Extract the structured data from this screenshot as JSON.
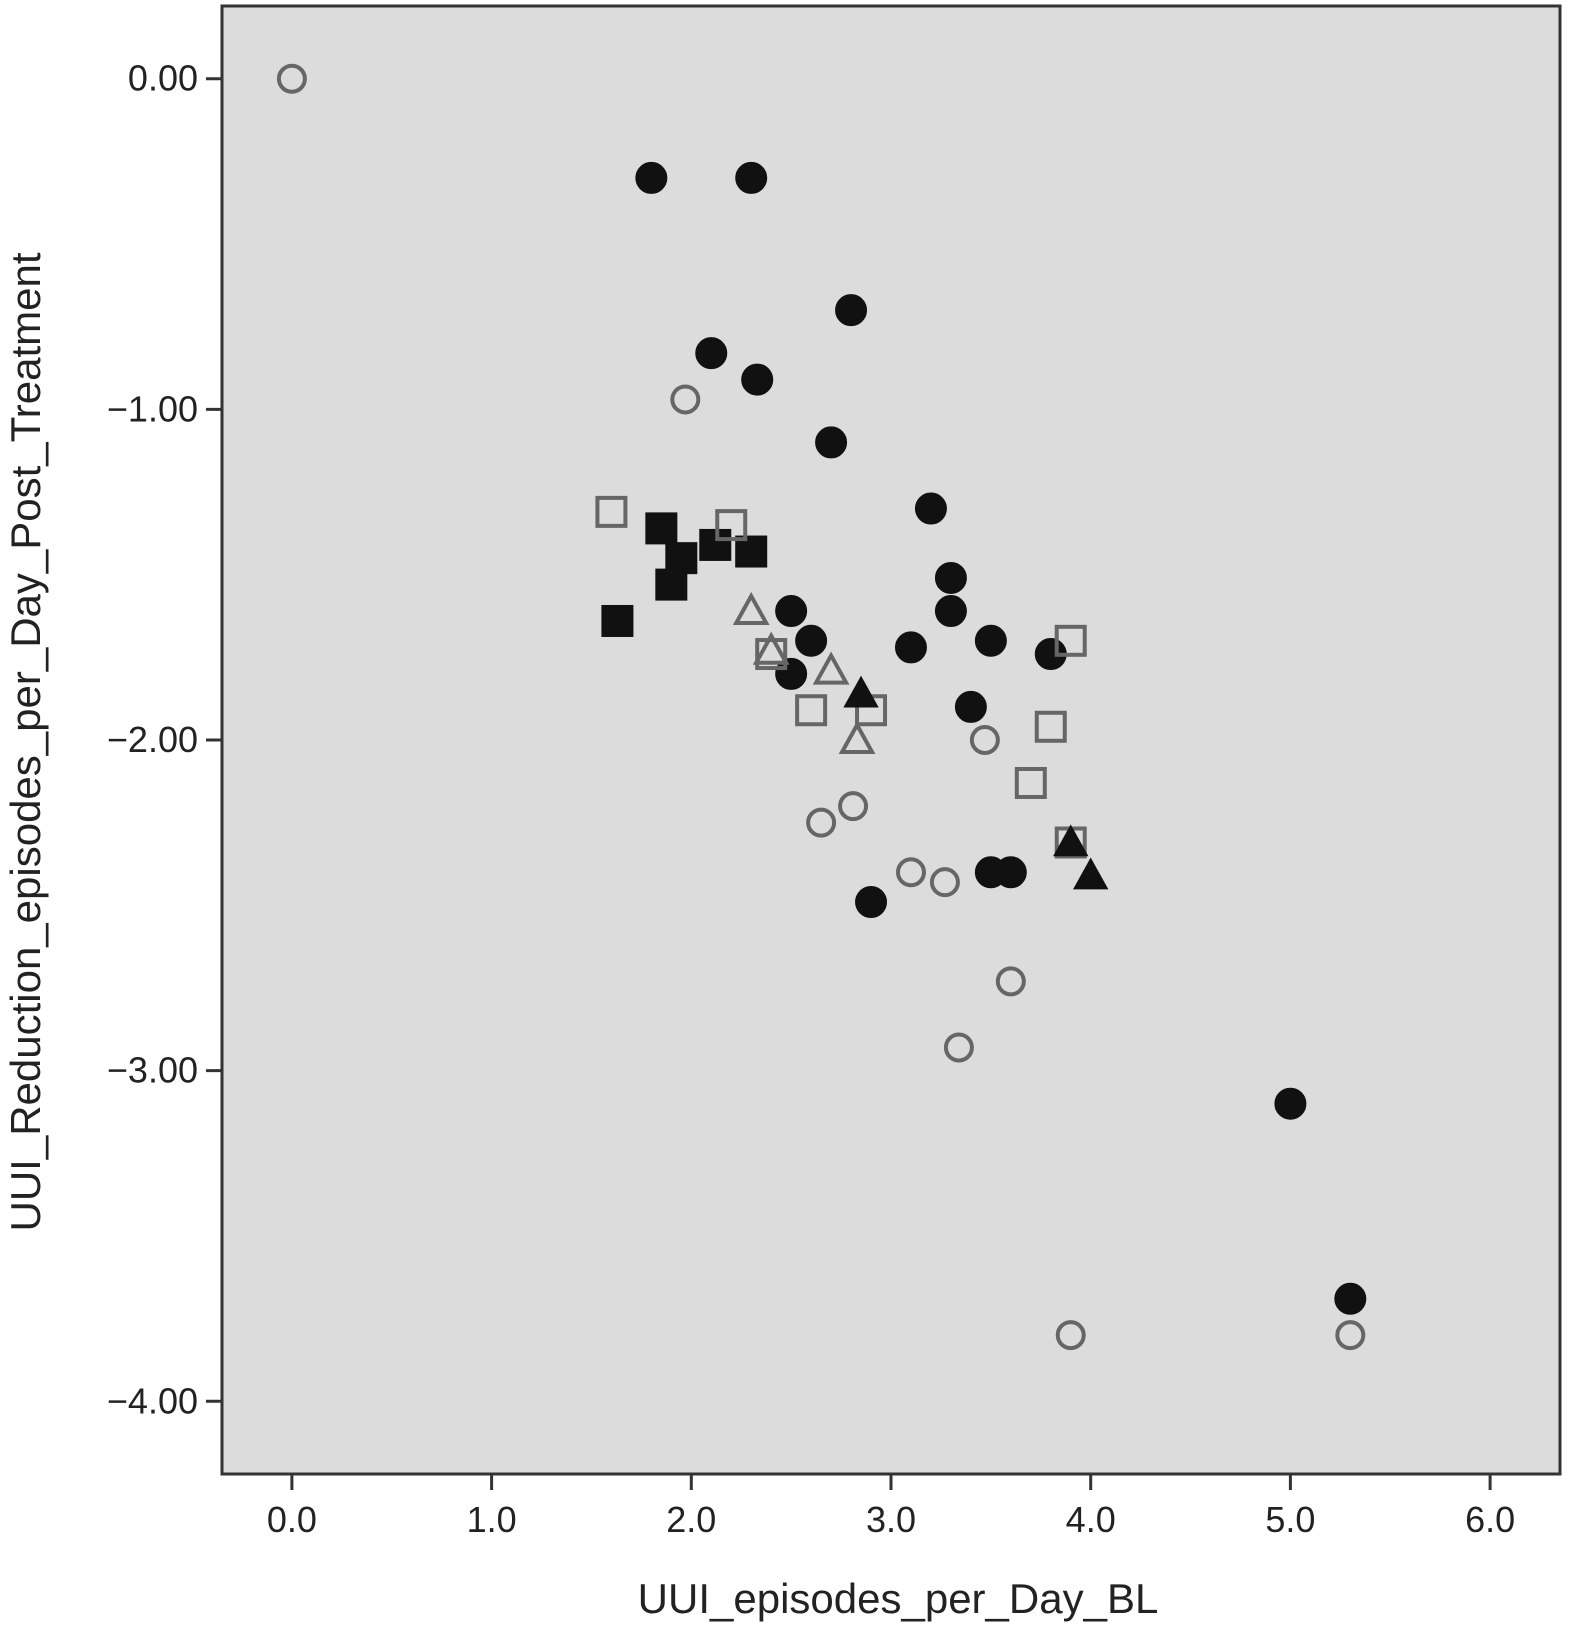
{
  "chart_data": {
    "type": "scatter",
    "xlabel": "UUI_episodes_per_Day_BL",
    "ylabel": "UUI_Reduction_episodes_per_Day_Post_Treatment",
    "xlim": [
      -0.35,
      6.35
    ],
    "ylim": [
      -4.22,
      0.22
    ],
    "x_ticks": [
      "0.0",
      "1.0",
      "2.0",
      "3.0",
      "4.0",
      "5.0",
      "6.0"
    ],
    "y_ticks": [
      "0.00",
      "−1.00",
      "−2.00",
      "−3.00",
      "−4.00"
    ],
    "grid": false,
    "plot_background": "#dcdcdc",
    "series": [
      {
        "marker": "circle-filled",
        "color": "#111111",
        "points": [
          [
            1.8,
            -0.3
          ],
          [
            2.3,
            -0.3
          ],
          [
            2.8,
            -0.7
          ],
          [
            2.1,
            -0.83
          ],
          [
            2.33,
            -0.91
          ],
          [
            2.7,
            -1.1
          ],
          [
            3.2,
            -1.3
          ],
          [
            3.3,
            -1.51
          ],
          [
            3.3,
            -1.61
          ],
          [
            2.5,
            -1.61
          ],
          [
            3.5,
            -1.7
          ],
          [
            3.1,
            -1.72
          ],
          [
            2.6,
            -1.7
          ],
          [
            3.8,
            -1.74
          ],
          [
            2.5,
            -1.8
          ],
          [
            3.4,
            -1.9
          ],
          [
            3.5,
            -2.4
          ],
          [
            3.6,
            -2.4
          ],
          [
            2.9,
            -2.49
          ],
          [
            5.0,
            -3.1
          ],
          [
            5.3,
            -3.69
          ]
        ]
      },
      {
        "marker": "circle-open",
        "color": "#666666",
        "points": [
          [
            0.0,
            0.0
          ],
          [
            1.97,
            -0.97
          ],
          [
            3.47,
            -2.0
          ],
          [
            2.81,
            -2.2
          ],
          [
            2.65,
            -2.25
          ],
          [
            3.1,
            -2.4
          ],
          [
            3.27,
            -2.43
          ],
          [
            3.6,
            -2.73
          ],
          [
            3.34,
            -2.93
          ],
          [
            3.9,
            -3.8
          ],
          [
            5.3,
            -3.8
          ]
        ]
      },
      {
        "marker": "square-filled",
        "color": "#111111",
        "points": [
          [
            1.63,
            -1.64
          ],
          [
            1.85,
            -1.36
          ],
          [
            1.95,
            -1.45
          ],
          [
            1.9,
            -1.53
          ],
          [
            2.12,
            -1.41
          ],
          [
            2.3,
            -1.43
          ]
        ]
      },
      {
        "marker": "square-open",
        "color": "#666666",
        "points": [
          [
            1.6,
            -1.31
          ],
          [
            2.2,
            -1.35
          ],
          [
            2.4,
            -1.74
          ],
          [
            2.6,
            -1.91
          ],
          [
            2.9,
            -1.91
          ],
          [
            3.8,
            -1.96
          ],
          [
            3.7,
            -2.13
          ],
          [
            3.9,
            -2.31
          ],
          [
            3.9,
            -1.7
          ]
        ]
      },
      {
        "marker": "triangle-filled",
        "color": "#111111",
        "points": [
          [
            2.85,
            -1.86
          ],
          [
            3.9,
            -2.31
          ],
          [
            4.0,
            -2.41
          ]
        ]
      },
      {
        "marker": "triangle-open",
        "color": "#666666",
        "points": [
          [
            2.3,
            -1.61
          ],
          [
            2.7,
            -1.79
          ],
          [
            2.83,
            -2.0
          ],
          [
            2.4,
            -1.73
          ]
        ]
      }
    ]
  }
}
